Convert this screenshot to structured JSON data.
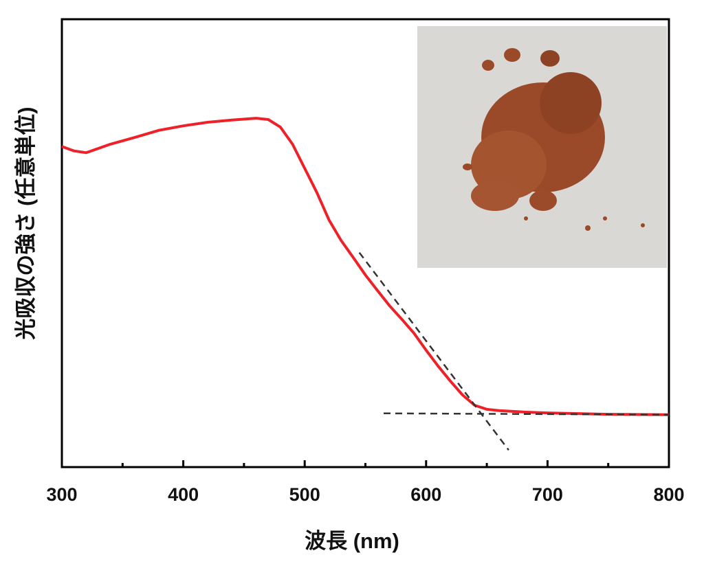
{
  "chart_data": {
    "type": "line",
    "xlabel": "波長 (nm)",
    "ylabel": "光吸収の強さ (任意単位)",
    "x": [
      300,
      310,
      320,
      340,
      360,
      380,
      400,
      420,
      440,
      460,
      470,
      480,
      490,
      500,
      510,
      520,
      530,
      540,
      550,
      560,
      570,
      580,
      590,
      600,
      610,
      620,
      630,
      640,
      650,
      660,
      680,
      700,
      750,
      800
    ],
    "series": [
      {
        "color": "#ee2028",
        "values": [
          0.716,
          0.706,
          0.702,
          0.721,
          0.736,
          0.752,
          0.762,
          0.77,
          0.775,
          0.779,
          0.776,
          0.759,
          0.721,
          0.667,
          0.613,
          0.552,
          0.506,
          0.468,
          0.429,
          0.394,
          0.36,
          0.33,
          0.299,
          0.261,
          0.225,
          0.192,
          0.161,
          0.138,
          0.129,
          0.126,
          0.123,
          0.121,
          0.118,
          0.117
        ]
      }
    ],
    "tangent_lines": [
      {
        "x": [
          545,
          668
        ],
        "y": [
          0.479,
          0.038
        ]
      },
      {
        "x": [
          565,
          800
        ],
        "y": [
          0.12,
          0.117
        ]
      }
    ],
    "xlim": [
      300,
      800
    ],
    "ylim": [
      0,
      1
    ],
    "xticks": [
      300,
      400,
      500,
      600,
      700,
      800
    ],
    "xminorticks": [
      350,
      450,
      550,
      650,
      750
    ]
  }
}
